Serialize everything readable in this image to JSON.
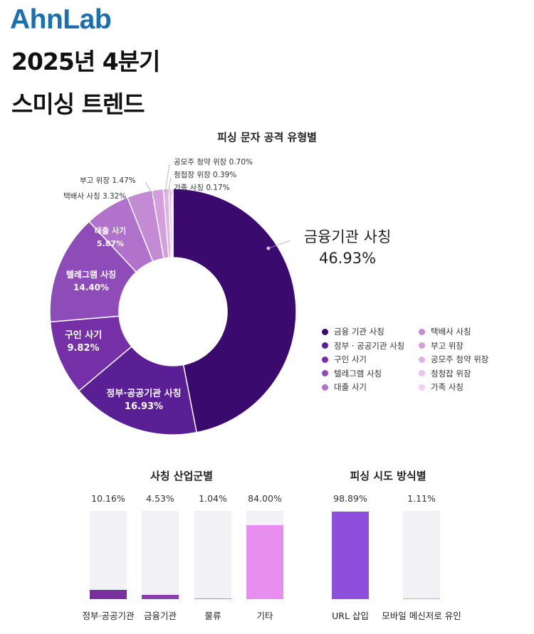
{
  "brand": "AhnLab",
  "title_line1": "2025년 4분기",
  "title_line2": "스미싱 트렌드",
  "chart_data": [
    {
      "type": "pie",
      "title": "피싱 문자 공격 유형별",
      "slices": [
        {
          "label": "금융기관 사칭",
          "value": 46.93,
          "value_label": "46.93%",
          "legend": "금융 기관 사칭",
          "color": "#3b0a6e"
        },
        {
          "label": "정부·공공기관 사칭",
          "value": 16.93,
          "value_label": "16.93%",
          "legend": "정부 · 공공기관 사칭",
          "color": "#5b1f95"
        },
        {
          "label": "구인 사기",
          "value": 9.82,
          "value_label": "9.82%",
          "legend": "구인 사기",
          "color": "#7530a8"
        },
        {
          "label": "텔레그램 사칭",
          "value": 14.4,
          "value_label": "14.40%",
          "legend": "텔레그램 사칭",
          "color": "#8e4cb8"
        },
        {
          "label": "대출 사기",
          "value": 5.87,
          "value_label": "5.87%",
          "legend": "대출 사기",
          "color": "#b172cc"
        },
        {
          "label": "택배사 사칭",
          "value": 3.32,
          "value_label": "택배사 사칭 3.32%",
          "legend": "택배사 사칭",
          "color": "#c48ad4"
        },
        {
          "label": "부고 위장",
          "value": 1.47,
          "value_label": "부고 위장 1.47%",
          "legend": "부고 위장",
          "color": "#d49fdc"
        },
        {
          "label": "공모주 청약 위장",
          "value": 0.7,
          "value_label": "공모주 청약 위장 0.70%",
          "legend": "공모주 청약 위장",
          "color": "#e0b3e6"
        },
        {
          "label": "청첩장 위장",
          "value": 0.39,
          "value_label": "청첩장 위장 0.39%",
          "legend": "청청잡 위장",
          "color": "#e9c2ec"
        },
        {
          "label": "가족 사칭",
          "value": 0.17,
          "value_label": "가족 사칭 0.17%",
          "legend": "가족 사칭",
          "color": "#f0d0f2"
        }
      ],
      "legend_placement": "bottom-right"
    },
    {
      "type": "bar",
      "title": "사칭 산업군별",
      "categories": [
        "정부·공공기관",
        "금융기관",
        "물류",
        "기타"
      ],
      "values": [
        10.16,
        4.53,
        1.04,
        84.0
      ],
      "value_labels": [
        "10.16%",
        "4.53%",
        "1.04%",
        "84.00%"
      ],
      "colors": [
        "#7a2fa0",
        "#8a3fae",
        "#c77bd8",
        "#e88ef0"
      ],
      "ylim": [
        0,
        100
      ]
    },
    {
      "type": "bar",
      "title": "피싱 시도 방식별",
      "categories": [
        "URL 삽입",
        "모바일 메신저로 유인"
      ],
      "values": [
        98.89,
        1.11
      ],
      "value_labels": [
        "98.89%",
        "1.11%"
      ],
      "colors": [
        "#8e4fdc",
        "#c8a4e4"
      ],
      "ylim": [
        0,
        100
      ]
    }
  ]
}
